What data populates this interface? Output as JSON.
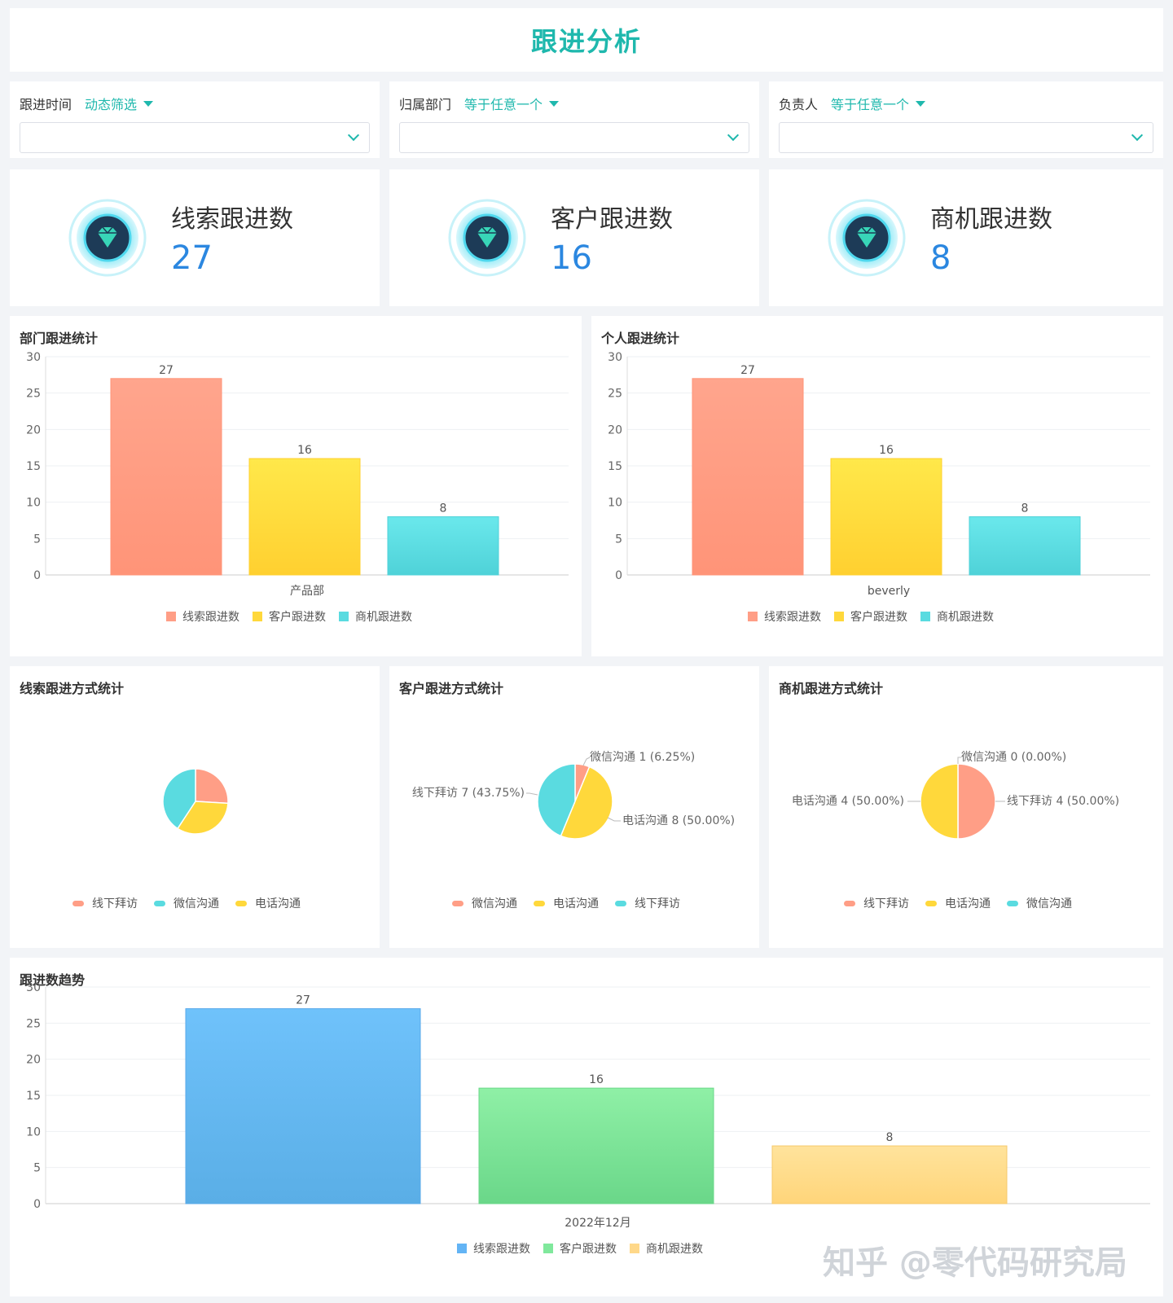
{
  "page_title": "跟进分析",
  "filters": [
    {
      "label": "跟进时间",
      "mode": "动态筛选",
      "value": ""
    },
    {
      "label": "归属部门",
      "mode": "等于任意一个",
      "value": ""
    },
    {
      "label": "负责人",
      "mode": "等于任意一个",
      "value": ""
    }
  ],
  "kpis": [
    {
      "label": "线索跟进数",
      "value": "27"
    },
    {
      "label": "客户跟进数",
      "value": "16"
    },
    {
      "label": "商机跟进数",
      "value": "8"
    }
  ],
  "colors": {
    "accent": "#1fb8ad",
    "kpi_value": "#2b87e0",
    "salmon": "#ff9e86",
    "yellow": "#ffd83b",
    "cyan": "#5adbe0",
    "blue": "#63b4f5",
    "green": "#80e89c",
    "orange": "#ffd889"
  },
  "chart_data": [
    {
      "id": "dept",
      "type": "bar",
      "title": "部门跟进统计",
      "categories": [
        "产品部"
      ],
      "series": [
        {
          "name": "线索跟进数",
          "values": [
            27
          ]
        },
        {
          "name": "客户跟进数",
          "values": [
            16
          ]
        },
        {
          "name": "商机跟进数",
          "values": [
            8
          ]
        }
      ],
      "ylim": [
        0,
        30
      ],
      "yticks": [
        0,
        5,
        10,
        15,
        20,
        25,
        30
      ],
      "legend": "bottom",
      "grid": true
    },
    {
      "id": "person",
      "type": "bar",
      "title": "个人跟进统计",
      "categories": [
        "beverly"
      ],
      "series": [
        {
          "name": "线索跟进数",
          "values": [
            27
          ]
        },
        {
          "name": "客户跟进数",
          "values": [
            16
          ]
        },
        {
          "name": "商机跟进数",
          "values": [
            8
          ]
        }
      ],
      "ylim": [
        0,
        30
      ],
      "yticks": [
        0,
        5,
        10,
        15,
        20,
        25,
        30
      ],
      "legend": "bottom",
      "grid": true
    },
    {
      "id": "pie_lead",
      "type": "pie",
      "title": "线索跟进方式统计",
      "legend_items": [
        "线下拜访",
        "微信沟通",
        "电话沟通"
      ],
      "slices": [
        {
          "name": "线下拜访",
          "value": 7,
          "color": "#ff9e86"
        },
        {
          "name": "电话沟通",
          "value": 9,
          "color": "#ffd83b"
        },
        {
          "name": "微信沟通",
          "value": 11,
          "color": "#5adbe0"
        }
      ],
      "labels_shown": false
    },
    {
      "id": "pie_customer",
      "type": "pie",
      "title": "客户跟进方式统计",
      "legend_items": [
        "微信沟通",
        "电话沟通",
        "线下拜访"
      ],
      "slices": [
        {
          "name": "微信沟通",
          "value": 1,
          "pct": "6.25%",
          "color": "#ff9e86",
          "label": "微信沟通 1 (6.25%)"
        },
        {
          "name": "电话沟通",
          "value": 8,
          "pct": "50.00%",
          "color": "#ffd83b",
          "label": "电话沟通 8 (50.00%)"
        },
        {
          "name": "线下拜访",
          "value": 7,
          "pct": "43.75%",
          "color": "#5adbe0",
          "label": "线下拜访 7 (43.75%)"
        }
      ],
      "labels_shown": true
    },
    {
      "id": "pie_opp",
      "type": "pie",
      "title": "商机跟进方式统计",
      "legend_items": [
        "线下拜访",
        "电话沟通",
        "微信沟通"
      ],
      "slices": [
        {
          "name": "线下拜访",
          "value": 4,
          "pct": "50.00%",
          "color": "#ff9e86",
          "label": "线下拜访 4 (50.00%)"
        },
        {
          "name": "电话沟通",
          "value": 4,
          "pct": "50.00%",
          "color": "#ffd83b",
          "label": "电话沟通 4 (50.00%)"
        },
        {
          "name": "微信沟通",
          "value": 0,
          "pct": "0.00%",
          "color": "#5adbe0",
          "label": "微信沟通 0 (0.00%)"
        }
      ],
      "labels_shown": true
    },
    {
      "id": "trend",
      "type": "bar",
      "title": "跟进数趋势",
      "categories": [
        "2022年12月"
      ],
      "series": [
        {
          "name": "线索跟进数",
          "values": [
            27
          ]
        },
        {
          "name": "客户跟进数",
          "values": [
            16
          ]
        },
        {
          "name": "商机跟进数",
          "values": [
            8
          ]
        }
      ],
      "ylim": [
        0,
        30
      ],
      "yticks": [
        0,
        5,
        10,
        15,
        20,
        25,
        30
      ],
      "legend": "bottom",
      "grid": true
    }
  ],
  "watermark": "知乎 @零代码研究局"
}
